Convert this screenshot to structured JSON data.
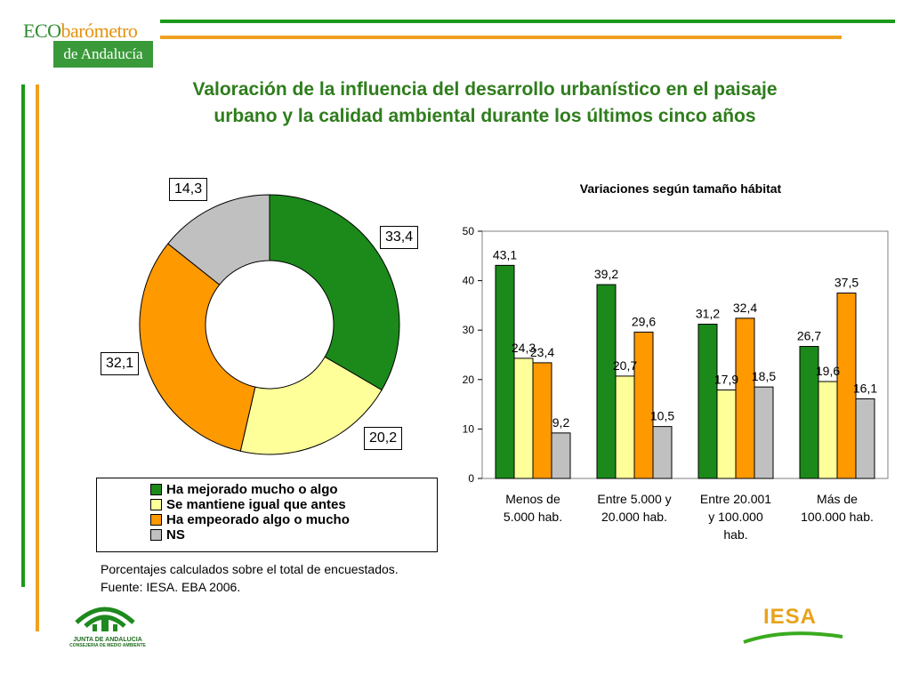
{
  "brand": {
    "eco": "ECO",
    "barometro": "barómetro",
    "andalucia": "de Andalucía"
  },
  "title": {
    "line1": "Valoración de la influencia del desarrollo urbanístico en el paisaje",
    "line2": "urbano y la calidad ambiental durante los últimos cinco años"
  },
  "colors": {
    "green": "#1b8a1b",
    "yellow": "#ffff99",
    "orange": "#ff9900",
    "gray": "#c0c0c0",
    "header_green": "#3a9a3a",
    "header_orange": "#f0a020",
    "title": "#2e7d1c"
  },
  "chart_data": [
    {
      "type": "pie",
      "subtype": "doughnut",
      "title": "",
      "categories": [
        "Ha mejorado mucho o algo",
        "Se mantiene igual que antes",
        "Ha empeorado algo o mucho",
        "NS"
      ],
      "values": [
        33.4,
        20.2,
        32.1,
        14.3
      ],
      "value_labels": [
        "33,4",
        "20,2",
        "32,1",
        "14,3"
      ],
      "legend_placement": "bottom"
    },
    {
      "type": "bar",
      "title": "Variaciones según tamaño hábitat",
      "categories": [
        "Menos de 5.000 hab.",
        "Entre 5.000 y 20.000 hab.",
        "Entre 20.001 y 100.000 hab.",
        "Más de 100.000 hab."
      ],
      "category_lines": [
        [
          "Menos de",
          "5.000 hab."
        ],
        [
          "Entre 5.000 y",
          "20.000 hab."
        ],
        [
          "Entre 20.001",
          "y 100.000",
          "hab."
        ],
        [
          "Más de",
          "100.000 hab."
        ]
      ],
      "series": [
        {
          "name": "Ha mejorado mucho o algo",
          "values": [
            43.1,
            39.2,
            31.2,
            26.7
          ],
          "labels": [
            "43,1",
            "39,2",
            "31,2",
            "26,7"
          ]
        },
        {
          "name": "Se mantiene igual que antes",
          "values": [
            24.3,
            20.7,
            17.9,
            19.6
          ],
          "labels": [
            "24,3",
            "20,7",
            "17,9",
            "19,6"
          ]
        },
        {
          "name": "Ha empeorado algo o mucho",
          "values": [
            23.4,
            29.6,
            32.4,
            37.5
          ],
          "labels": [
            "23,4",
            "29,6",
            "32,4",
            "37,5"
          ]
        },
        {
          "name": "NS",
          "values": [
            9.2,
            10.5,
            18.5,
            16.1
          ],
          "labels": [
            "9,2",
            "10,5",
            "18,5",
            "16,1"
          ]
        }
      ],
      "ylim": [
        0,
        50
      ],
      "yticks": [
        0,
        10,
        20,
        30,
        40,
        50
      ],
      "xlabel": "",
      "ylabel": "",
      "grid": false
    }
  ],
  "notes": {
    "line1": "Porcentajes calculados sobre el total de encuestados.",
    "line2": "Fuente: IESA. EBA 2006."
  },
  "logos": {
    "junta_line1": "JUNTA DE ANDALUCIA",
    "junta_line2": "CONSEJERIA DE MEDIO AMBIENTE",
    "iesa": "IESA"
  }
}
